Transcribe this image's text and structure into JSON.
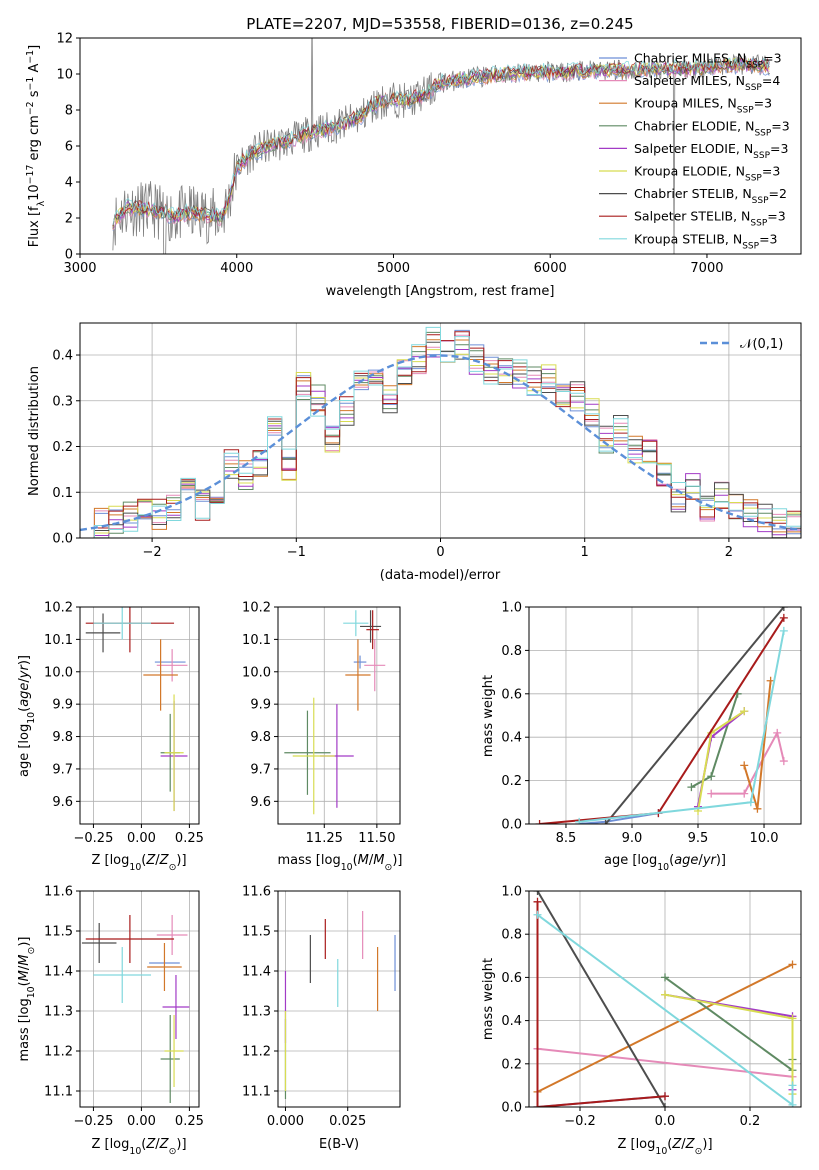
{
  "figure": {
    "title": "PLATE=2207, MJD=53558, FIBERID=0136, z=0.245"
  },
  "colors": {
    "Chabrier MILES": "#6e8fd6",
    "Salpeter MILES": "#e58ab8",
    "Kroupa MILES": "#d2782a",
    "Chabrier ELODIE": "#5f8a63",
    "Salpeter ELODIE": "#a23bc6",
    "Kroupa ELODIE": "#d8dc52",
    "Chabrier STELIB": "#4d4d4d",
    "Salpeter STELIB": "#a81b1b",
    "Kroupa STELIB": "#80d8dd",
    "data": "#7f7f7f",
    "normal": "#5b8fd8"
  },
  "chart_data": [
    {
      "id": "spectrum",
      "type": "line",
      "title": "PLATE=2207, MJD=53558, FIBERID=0136, z=0.245",
      "xlabel": "wavelength [Angstrom, rest frame]",
      "ylabel": "Flux [f_λ10^-17 erg cm^-2 s^-1 A^-1]",
      "xlim": [
        3000,
        7600
      ],
      "ylim": [
        0,
        12
      ],
      "xticks": [
        3000,
        4000,
        5000,
        6000,
        7000
      ],
      "yticks": [
        0,
        2,
        4,
        6,
        8,
        10,
        12
      ],
      "grid": false,
      "legend_placement": "right",
      "legend": [
        "Chabrier MILES, N_SSP=3",
        "Salpeter MILES, N_SSP=4",
        "Kroupa MILES, N_SSP=3",
        "Chabrier ELODIE, N_SSP=3",
        "Salpeter ELODIE, N_SSP=3",
        "Kroupa ELODIE, N_SSP=3",
        "Chabrier STELIB, N_SSP=2",
        "Salpeter STELIB, N_SSP=3",
        "Kroupa STELIB, N_SSP=3"
      ],
      "series": [
        {
          "name": "Chabrier MILES, N_SSP=3",
          "key": "Chabrier MILES"
        },
        {
          "name": "Salpeter MILES, N_SSP=4",
          "key": "Salpeter MILES"
        },
        {
          "name": "Kroupa MILES, N_SSP=3",
          "key": "Kroupa MILES"
        },
        {
          "name": "Chabrier ELODIE, N_SSP=3",
          "key": "Chabrier ELODIE"
        },
        {
          "name": "Salpeter ELODIE, N_SSP=3",
          "key": "Salpeter ELODIE"
        },
        {
          "name": "Kroupa ELODIE, N_SSP=3",
          "key": "Kroupa ELODIE"
        },
        {
          "name": "Chabrier STELIB, N_SSP=2",
          "key": "Chabrier STELIB"
        },
        {
          "name": "Salpeter STELIB, N_SSP=3",
          "key": "Salpeter STELIB"
        },
        {
          "name": "Kroupa STELIB, N_SSP=3",
          "key": "Kroupa STELIB"
        }
      ],
      "continuum": {
        "x": [
          3210,
          3300,
          3400,
          3500,
          3600,
          3700,
          3800,
          3900,
          3950,
          4000,
          4100,
          4200,
          4300,
          4400,
          4500,
          4600,
          4700,
          4800,
          4900,
          5000,
          5100,
          5200,
          5300,
          5500,
          5700,
          5900,
          6100,
          6300,
          6500,
          6700,
          6900,
          7100,
          7300,
          7400
        ],
        "y": [
          1.8,
          2.6,
          2.5,
          2.4,
          2.1,
          2.3,
          2.2,
          2.0,
          3.0,
          4.8,
          5.6,
          6.0,
          6.2,
          6.5,
          6.8,
          7.0,
          7.3,
          7.7,
          8.4,
          8.6,
          8.5,
          8.9,
          9.5,
          9.8,
          10.0,
          10.1,
          10.1,
          10.2,
          10.2,
          10.3,
          10.3,
          10.5,
          10.5,
          10.4
        ]
      }
    },
    {
      "id": "residuals",
      "type": "histogram",
      "xlabel": "(data-model)/error",
      "ylabel": "Normed distribution",
      "xlim": [
        -2.5,
        2.5
      ],
      "ylim": [
        0,
        0.47
      ],
      "xticks": [
        -2,
        -1,
        0,
        1,
        2
      ],
      "yticks": [
        0.0,
        0.1,
        0.2,
        0.3,
        0.4
      ],
      "grid": true,
      "legend_placement": "top-right",
      "reference_curve": {
        "name": "𝒩(0,1)",
        "type": "normal",
        "mean": 0,
        "sigma": 1
      },
      "bins": [
        -2.5,
        -2.4,
        -2.3,
        -2.2,
        -2.1,
        -2.0,
        -1.9,
        -1.8,
        -1.7,
        -1.6,
        -1.5,
        -1.4,
        -1.3,
        -1.2,
        -1.1,
        -1.0,
        -0.9,
        -0.8,
        -0.7,
        -0.6,
        -0.5,
        -0.4,
        -0.3,
        -0.2,
        -0.1,
        0.0,
        0.1,
        0.2,
        0.3,
        0.4,
        0.5,
        0.6,
        0.7,
        0.8,
        0.9,
        1.0,
        1.1,
        1.2,
        1.3,
        1.4,
        1.5,
        1.6,
        1.7,
        1.8,
        1.9,
        2.0,
        2.1,
        2.2,
        2.3,
        2.4,
        2.5
      ],
      "base_values": [
        0.03,
        0.035,
        0.04,
        0.045,
        0.05,
        0.05,
        0.06,
        0.11,
        0.07,
        0.1,
        0.16,
        0.14,
        0.17,
        0.24,
        0.16,
        0.33,
        0.3,
        0.22,
        0.28,
        0.33,
        0.35,
        0.3,
        0.37,
        0.39,
        0.43,
        0.41,
        0.42,
        0.39,
        0.36,
        0.37,
        0.36,
        0.34,
        0.35,
        0.32,
        0.31,
        0.27,
        0.21,
        0.24,
        0.19,
        0.18,
        0.14,
        0.09,
        0.11,
        0.07,
        0.09,
        0.07,
        0.05,
        0.045,
        0.03,
        0.03
      ]
    },
    {
      "id": "age_vs_Z",
      "type": "errorbar",
      "xlabel": "Z [log10(Z/Z⊙)]",
      "ylabel": "age  [log10(age/yr)]",
      "xlim": [
        -0.32,
        0.3
      ],
      "ylim": [
        9.53,
        10.2
      ],
      "xticks": [
        -0.25,
        0.0,
        0.25
      ],
      "xticklabels": [
        "−0.25",
        "0.00",
        "0.25"
      ],
      "yticks": [
        9.6,
        9.7,
        9.8,
        9.9,
        10.0,
        10.1,
        10.2
      ],
      "grid": true,
      "points": [
        {
          "key": "Chabrier MILES",
          "x": 0.15,
          "y": 10.03,
          "xerr": 0.08,
          "yerr": 0.0
        },
        {
          "key": "Salpeter MILES",
          "x": 0.16,
          "y": 10.02,
          "xerr": 0.08,
          "yerr": 0.05
        },
        {
          "key": "Kroupa MILES",
          "x": 0.1,
          "y": 9.99,
          "xerr": 0.09,
          "yerr": 0.11
        },
        {
          "key": "Chabrier ELODIE",
          "x": 0.15,
          "y": 9.75,
          "xerr": 0.05,
          "yerr": 0.12
        },
        {
          "key": "Salpeter ELODIE",
          "x": 0.17,
          "y": 9.74,
          "xerr": 0.07,
          "yerr": 0.17
        },
        {
          "key": "Kroupa ELODIE",
          "x": 0.17,
          "y": 9.75,
          "xerr": 0.05,
          "yerr": 0.18
        },
        {
          "key": "Chabrier STELIB",
          "x": -0.2,
          "y": 10.12,
          "xerr": 0.09,
          "yerr": 0.06
        },
        {
          "key": "Salpeter STELIB",
          "x": -0.06,
          "y": 10.15,
          "xerr": 0.23,
          "yerr": 0.09
        },
        {
          "key": "Kroupa STELIB",
          "x": -0.1,
          "y": 10.15,
          "xerr": 0.15,
          "yerr": 0.05
        }
      ]
    },
    {
      "id": "age_vs_mass",
      "type": "errorbar",
      "xlabel": "mass [log10(M/M⊙)]",
      "ylabel": "",
      "xlim": [
        11.03,
        11.61
      ],
      "ylim": [
        9.53,
        10.2
      ],
      "xticks": [
        11.25,
        11.5
      ],
      "xticklabels": [
        "11.25",
        "11.50"
      ],
      "yticks": [
        9.6,
        9.7,
        9.8,
        9.9,
        10.0,
        10.1,
        10.2
      ],
      "grid": true,
      "points": [
        {
          "key": "Chabrier MILES",
          "x": 11.42,
          "y": 10.03,
          "xerr": 0.03,
          "yerr": 0.02
        },
        {
          "key": "Salpeter MILES",
          "x": 11.49,
          "y": 10.02,
          "xerr": 0.05,
          "yerr": 0.08
        },
        {
          "key": "Kroupa MILES",
          "x": 11.41,
          "y": 9.99,
          "xerr": 0.06,
          "yerr": 0.11
        },
        {
          "key": "Chabrier ELODIE",
          "x": 11.17,
          "y": 9.75,
          "xerr": 0.11,
          "yerr": 0.13
        },
        {
          "key": "Salpeter ELODIE",
          "x": 11.31,
          "y": 9.74,
          "xerr": 0.08,
          "yerr": 0.16
        },
        {
          "key": "Kroupa ELODIE",
          "x": 11.2,
          "y": 9.74,
          "xerr": 0.1,
          "yerr": 0.18
        },
        {
          "key": "Chabrier STELIB",
          "x": 11.47,
          "y": 10.14,
          "xerr": 0.05,
          "yerr": 0.05
        },
        {
          "key": "Salpeter STELIB",
          "x": 11.48,
          "y": 10.13,
          "xerr": 0.03,
          "yerr": 0.06
        },
        {
          "key": "Kroupa STELIB",
          "x": 11.4,
          "y": 10.15,
          "xerr": 0.06,
          "yerr": 0.04
        }
      ]
    },
    {
      "id": "weight_vs_age",
      "type": "line",
      "xlabel": "age  [log10(age/yr)]",
      "ylabel": "mass weight",
      "xlim": [
        8.22,
        10.28
      ],
      "ylim": [
        0,
        1.0
      ],
      "xticks": [
        8.5,
        9.0,
        9.5,
        10.0
      ],
      "xticklabels": [
        "8.5",
        "9.0",
        "9.5",
        "10.0"
      ],
      "yticks": [
        0.0,
        0.2,
        0.4,
        0.6,
        0.8,
        1.0
      ],
      "grid": true,
      "series": [
        {
          "key": "Chabrier MILES",
          "x": [
            8.6,
            8.8,
            9.2
          ],
          "y": [
            0.0,
            0.01,
            0.05
          ]
        },
        {
          "key": "Salpeter MILES",
          "x": [
            9.6,
            9.85,
            10.1,
            10.15
          ],
          "y": [
            0.14,
            0.14,
            0.42,
            0.29
          ]
        },
        {
          "key": "Kroupa MILES",
          "x": [
            9.85,
            9.95,
            10.05
          ],
          "y": [
            0.27,
            0.07,
            0.66
          ]
        },
        {
          "key": "Chabrier ELODIE",
          "x": [
            9.45,
            9.6,
            9.8
          ],
          "y": [
            0.17,
            0.22,
            0.6
          ]
        },
        {
          "key": "Salpeter ELODIE",
          "x": [
            9.5,
            9.6,
            9.85
          ],
          "y": [
            0.08,
            0.4,
            0.52
          ]
        },
        {
          "key": "Kroupa ELODIE",
          "x": [
            9.5,
            9.6,
            9.85
          ],
          "y": [
            0.06,
            0.42,
            0.52
          ]
        },
        {
          "key": "Chabrier STELIB",
          "x": [
            8.8,
            10.15
          ],
          "y": [
            0.0,
            1.0
          ]
        },
        {
          "key": "Salpeter STELIB",
          "x": [
            8.3,
            9.2,
            10.15
          ],
          "y": [
            0.0,
            0.05,
            0.95
          ]
        },
        {
          "key": "Kroupa STELIB",
          "x": [
            8.6,
            9.9,
            10.15
          ],
          "y": [
            0.01,
            0.1,
            0.89
          ]
        }
      ]
    },
    {
      "id": "mass_vs_Z",
      "type": "errorbar",
      "xlabel": "Z [log10(Z/Z⊙)]",
      "ylabel": "mass [log10(M/M⊙)]",
      "xlim": [
        -0.32,
        0.3
      ],
      "ylim": [
        11.06,
        11.6
      ],
      "xticks": [
        -0.25,
        0.0,
        0.25
      ],
      "xticklabels": [
        "−0.25",
        "0.00",
        "0.25"
      ],
      "yticks": [
        11.1,
        11.2,
        11.3,
        11.4,
        11.5,
        11.6
      ],
      "grid": true,
      "points": [
        {
          "key": "Chabrier MILES",
          "x": 0.12,
          "y": 11.42,
          "xerr": 0.08,
          "yerr": 0.0
        },
        {
          "key": "Salpeter MILES",
          "x": 0.16,
          "y": 11.49,
          "xerr": 0.08,
          "yerr": 0.05
        },
        {
          "key": "Kroupa MILES",
          "x": 0.12,
          "y": 11.41,
          "xerr": 0.09,
          "yerr": 0.06
        },
        {
          "key": "Chabrier ELODIE",
          "x": 0.15,
          "y": 11.18,
          "xerr": 0.05,
          "yerr": 0.11
        },
        {
          "key": "Salpeter ELODIE",
          "x": 0.18,
          "y": 11.31,
          "xerr": 0.07,
          "yerr": 0.08
        },
        {
          "key": "Kroupa ELODIE",
          "x": 0.17,
          "y": 11.2,
          "xerr": 0.05,
          "yerr": 0.09
        },
        {
          "key": "Chabrier STELIB",
          "x": -0.22,
          "y": 11.47,
          "xerr": 0.09,
          "yerr": 0.05
        },
        {
          "key": "Salpeter STELIB",
          "x": -0.06,
          "y": 11.48,
          "xerr": 0.23,
          "yerr": 0.06
        },
        {
          "key": "Kroupa STELIB",
          "x": -0.1,
          "y": 11.39,
          "xerr": 0.15,
          "yerr": 0.07
        }
      ]
    },
    {
      "id": "mass_vs_EBV",
      "type": "errorbar",
      "xlabel": "E(B-V)",
      "ylabel": "",
      "xlim": [
        -0.003,
        0.046
      ],
      "ylim": [
        11.06,
        11.6
      ],
      "xticks": [
        0.0,
        0.025
      ],
      "xticklabels": [
        "0.000",
        "0.025"
      ],
      "yticks": [
        11.1,
        11.2,
        11.3,
        11.4,
        11.5,
        11.6
      ],
      "grid": true,
      "points": [
        {
          "key": "Chabrier MILES",
          "x": 0.044,
          "y": 11.42,
          "xerr": 0.0,
          "yerr": 0.07
        },
        {
          "key": "Salpeter MILES",
          "x": 0.031,
          "y": 11.49,
          "xerr": 0.0,
          "yerr": 0.06
        },
        {
          "key": "Kroupa MILES",
          "x": 0.037,
          "y": 11.38,
          "xerr": 0.0,
          "yerr": 0.08
        },
        {
          "key": "Chabrier ELODIE",
          "x": 0.0,
          "y": 11.18,
          "xerr": 0.0,
          "yerr": 0.1
        },
        {
          "key": "Salpeter ELODIE",
          "x": 0.0,
          "y": 11.31,
          "xerr": 0.0,
          "yerr": 0.09
        },
        {
          "key": "Kroupa ELODIE",
          "x": 0.0,
          "y": 11.2,
          "xerr": 0.0,
          "yerr": 0.1
        },
        {
          "key": "Chabrier STELIB",
          "x": 0.01,
          "y": 11.43,
          "xerr": 0.0,
          "yerr": 0.06
        },
        {
          "key": "Salpeter STELIB",
          "x": 0.016,
          "y": 11.48,
          "xerr": 0.0,
          "yerr": 0.05
        },
        {
          "key": "Kroupa STELIB",
          "x": 0.021,
          "y": 11.37,
          "xerr": 0.0,
          "yerr": 0.06
        }
      ]
    },
    {
      "id": "weight_vs_Z",
      "type": "line",
      "xlabel": "Z [log10(Z/Z⊙)]",
      "ylabel": "mass weight",
      "xlim": [
        -0.32,
        0.32
      ],
      "ylim": [
        0,
        1.0
      ],
      "xticks": [
        -0.2,
        0.0,
        0.2
      ],
      "xticklabels": [
        "−0.2",
        "0.0",
        "0.2"
      ],
      "yticks": [
        0.0,
        0.2,
        0.4,
        0.6,
        0.8,
        1.0
      ],
      "grid": true,
      "series": [
        {
          "key": "Chabrier MILES",
          "x": [
            -0.3,
            0.0
          ],
          "y": [
            0.0,
            0.05
          ]
        },
        {
          "key": "Salpeter MILES",
          "x": [
            -0.3,
            -0.3,
            0.3
          ],
          "y": [
            0.27,
            0.27,
            0.14
          ]
        },
        {
          "key": "Kroupa MILES",
          "x": [
            -0.3,
            0.3
          ],
          "y": [
            0.07,
            0.66
          ]
        },
        {
          "key": "Chabrier ELODIE",
          "x": [
            0.0,
            0.3,
            0.3
          ],
          "y": [
            0.6,
            0.17,
            0.22
          ]
        },
        {
          "key": "Salpeter ELODIE",
          "x": [
            0.0,
            0.3,
            0.3
          ],
          "y": [
            0.52,
            0.42,
            0.08
          ]
        },
        {
          "key": "Kroupa ELODIE",
          "x": [
            0.0,
            0.3,
            0.3
          ],
          "y": [
            0.52,
            0.41,
            0.06
          ]
        },
        {
          "key": "Chabrier STELIB",
          "x": [
            -0.3,
            0.0
          ],
          "y": [
            1.0,
            0.0
          ]
        },
        {
          "key": "Salpeter STELIB",
          "x": [
            -0.3,
            -0.3,
            0.0
          ],
          "y": [
            0.95,
            0.0,
            0.05
          ]
        },
        {
          "key": "Kroupa STELIB",
          "x": [
            -0.3,
            0.3,
            0.3
          ],
          "y": [
            0.89,
            0.01,
            0.1
          ]
        }
      ]
    }
  ]
}
